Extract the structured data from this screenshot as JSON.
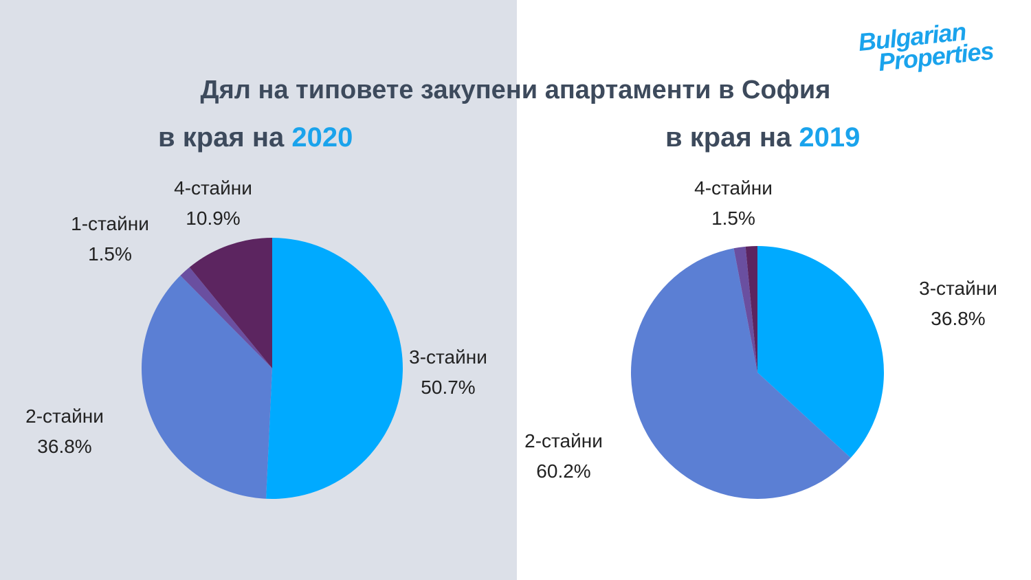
{
  "logo": {
    "line1": "Bulgarian",
    "line2": "Properties"
  },
  "chart_data": [
    {
      "type": "pie",
      "title": "Дял на типовете закупени апартаменти в София",
      "subtitle_prefix": "в края на",
      "year": "2020",
      "slices": [
        {
          "label": "3-стайни",
          "value": 50.7,
          "display": "50.7%",
          "color": "#00aaff"
        },
        {
          "label": "2-стайни",
          "value": 36.8,
          "display": "36.8%",
          "color": "#5b7fd4"
        },
        {
          "label": "1-стайни",
          "value": 1.5,
          "display": "1.5%",
          "color": "#6a4fa0"
        },
        {
          "label": "4-стайни",
          "value": 10.9,
          "display": "10.9%",
          "color": "#5c2560"
        }
      ]
    },
    {
      "type": "pie",
      "subtitle_prefix": "в края на",
      "year": "2019",
      "slices": [
        {
          "label": "3-стайни",
          "value": 36.8,
          "display": "36.8%",
          "color": "#00aaff"
        },
        {
          "label": "2-стайни",
          "value": 60.2,
          "display": "60.2%",
          "color": "#5b7fd4"
        },
        {
          "label": "",
          "value": 1.5,
          "display": "",
          "color": "#6a4fa0"
        },
        {
          "label": "4-стайни",
          "value": 1.5,
          "display": "1.5%",
          "color": "#5c2560"
        }
      ]
    }
  ]
}
